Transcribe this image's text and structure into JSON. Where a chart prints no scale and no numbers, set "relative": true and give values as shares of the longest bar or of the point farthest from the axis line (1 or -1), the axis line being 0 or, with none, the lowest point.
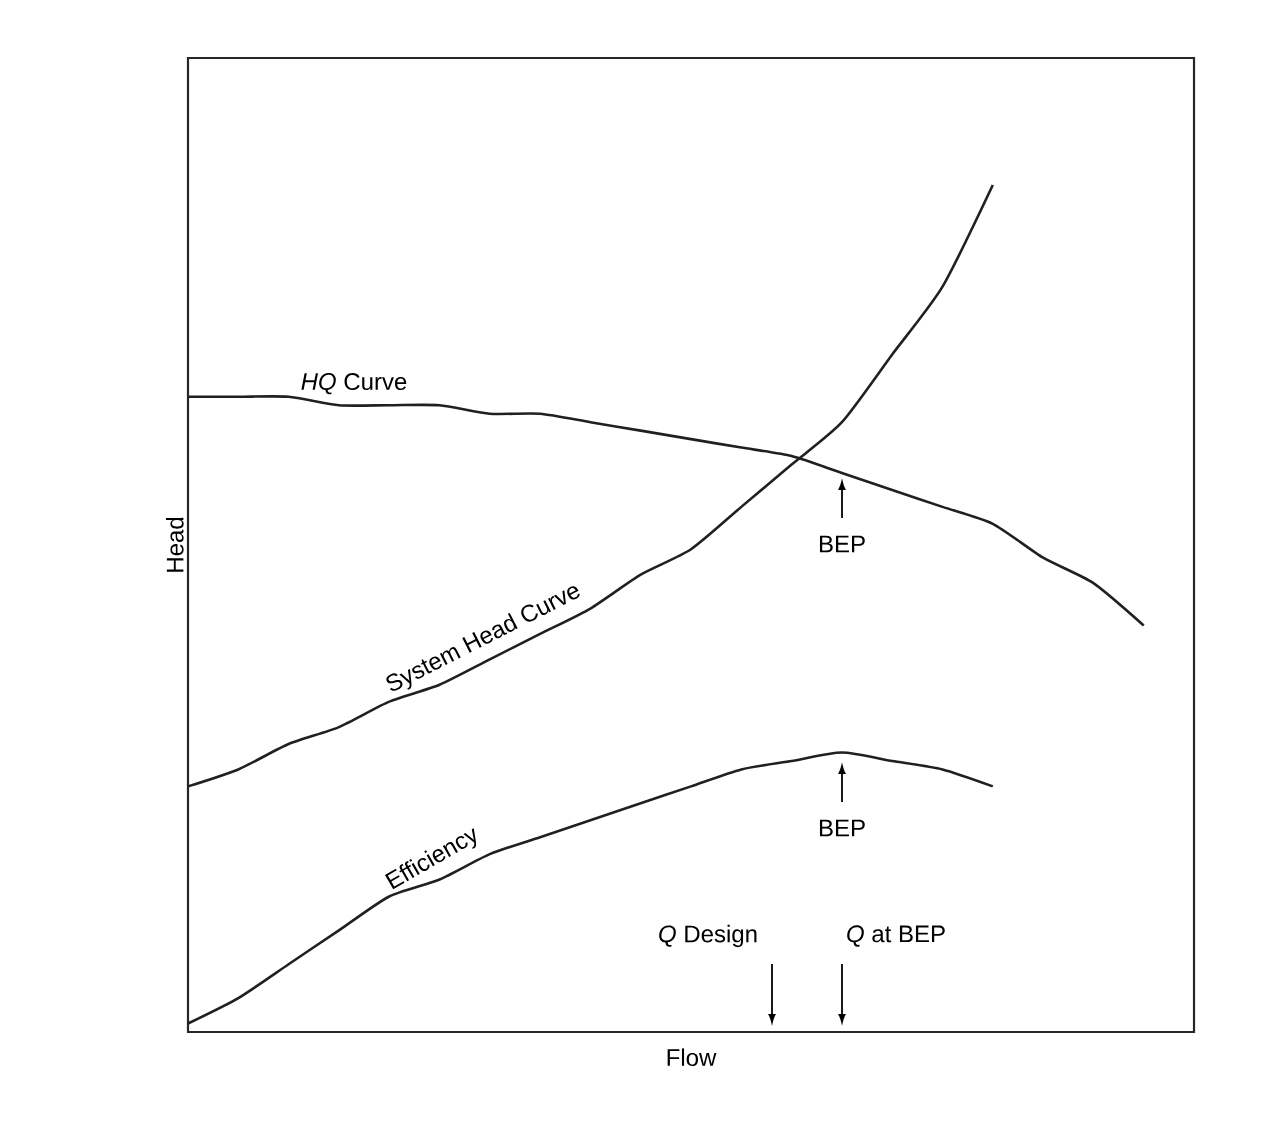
{
  "chart_data": {
    "type": "line",
    "relative": true,
    "xlabel": "Flow",
    "ylabel": "Head",
    "categories": [
      null,
      null,
      null,
      null,
      null,
      null,
      null,
      null,
      null,
      null,
      null,
      null,
      null,
      null,
      null,
      null,
      null,
      null,
      null,
      null,
      null
    ],
    "series": [
      {
        "name": "*HQ* Curve",
        "color": "#231f20",
        "values": [
          0.75,
          0.75,
          0.75,
          0.74,
          0.74,
          0.74,
          0.73,
          0.73,
          0.72,
          0.71,
          0.7,
          0.69,
          0.68,
          0.66,
          0.64,
          0.62,
          0.6,
          0.56,
          0.53,
          0.48,
          null
        ]
      },
      {
        "name": "System Head Curve",
        "color": "#231f20",
        "values": [
          0.29,
          0.31,
          0.34,
          0.36,
          0.39,
          0.41,
          0.44,
          0.47,
          0.5,
          0.54,
          0.57,
          0.62,
          0.67,
          0.72,
          0.8,
          0.88,
          1.0,
          null,
          null,
          null,
          null
        ]
      },
      {
        "name": "Efficiency",
        "color": "#231f20",
        "values": [
          0.01,
          0.04,
          0.08,
          0.12,
          0.16,
          0.18,
          0.21,
          0.23,
          0.25,
          0.27,
          0.29,
          0.31,
          0.32,
          0.33,
          0.32,
          0.31,
          0.29,
          null,
          null,
          null,
          null
        ]
      }
    ],
    "annotations": [
      "BEP",
      "BEP",
      "*Q* Design",
      "*Q* at BEP"
    ],
    "legend": false,
    "marker": "none",
    "line_style": "solid"
  }
}
